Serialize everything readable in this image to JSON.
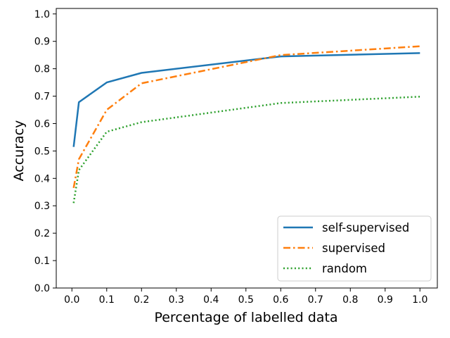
{
  "chart_data": {
    "type": "line",
    "xlabel": "Percentage of labelled data",
    "ylabel": "Accuracy",
    "xlim": [
      -0.045,
      1.05
    ],
    "ylim": [
      0.0,
      1.02
    ],
    "xticks": [
      "0.0",
      "0.1",
      "0.2",
      "0.3",
      "0.4",
      "0.5",
      "0.6",
      "0.7",
      "0.8",
      "0.9",
      "1.0"
    ],
    "yticks": [
      "0.0",
      "0.1",
      "0.2",
      "0.3",
      "0.4",
      "0.5",
      "0.6",
      "0.7",
      "0.8",
      "0.9",
      "1.0"
    ],
    "grid": false,
    "legend_position": "bottom-right",
    "series": [
      {
        "name": "self-supervised",
        "color": "#1f77b4",
        "dash": "solid",
        "x": [
          0.005,
          0.02,
          0.1,
          0.2,
          0.6,
          1.0
        ],
        "y": [
          0.515,
          0.678,
          0.75,
          0.785,
          0.845,
          0.857
        ]
      },
      {
        "name": "supervised",
        "color": "#ff7f0e",
        "dash": "dashdot",
        "x": [
          0.005,
          0.02,
          0.1,
          0.2,
          0.6,
          1.0
        ],
        "y": [
          0.365,
          0.47,
          0.65,
          0.747,
          0.85,
          0.882
        ]
      },
      {
        "name": "random",
        "color": "#2ca02c",
        "dash": "dotted",
        "x": [
          0.005,
          0.02,
          0.1,
          0.2,
          0.6,
          1.0
        ],
        "y": [
          0.31,
          0.43,
          0.57,
          0.605,
          0.675,
          0.698
        ]
      }
    ]
  }
}
